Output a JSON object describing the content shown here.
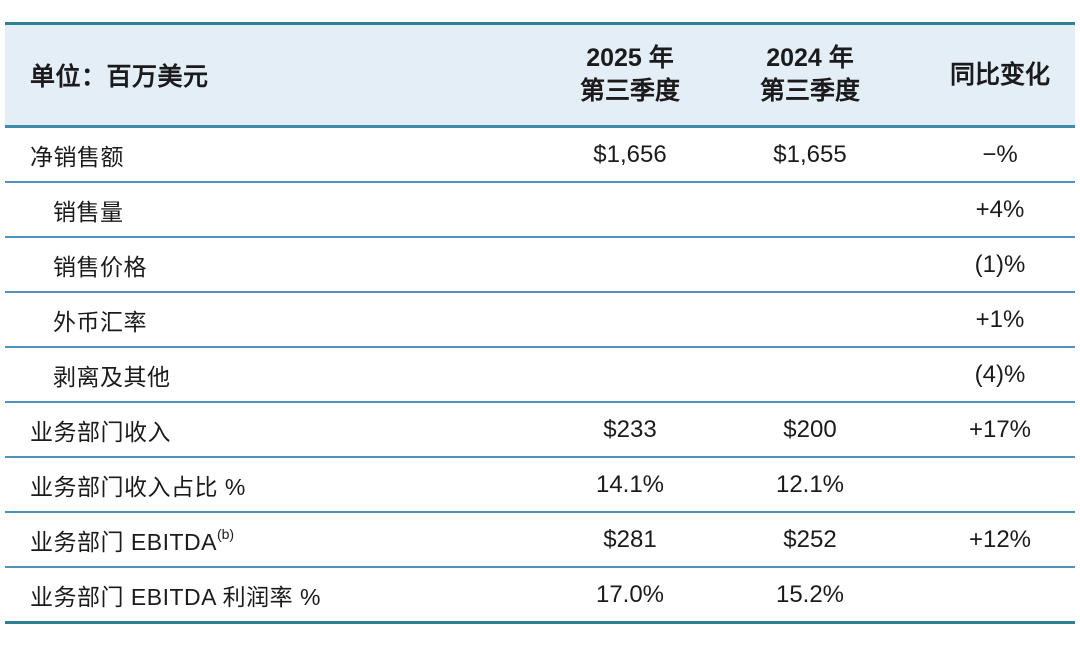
{
  "colors": {
    "page_bg": "#ffffff",
    "header_bg": "#e4eef6",
    "outer_border": "#2f8093",
    "header_line": "#3f8aa8",
    "row_line": "#4f94b8",
    "text": "#1b1b1d"
  },
  "table": {
    "header": {
      "unit": "单位：百万美元",
      "q3_2025_line1": "2025 年",
      "q3_2025_line2": "第三季度",
      "q3_2024_line1": "2024 年",
      "q3_2024_line2": "第三季度",
      "yoy_change": "同比变化"
    },
    "rows": [
      {
        "label": "净销售额",
        "q3_2025": "$1,656",
        "q3_2024": "$1,655",
        "yoy_change": "−%"
      },
      {
        "label": "销售量",
        "q3_2025": "",
        "q3_2024": "",
        "yoy_change": "+4%"
      },
      {
        "label": "销售价格",
        "q3_2025": "",
        "q3_2024": "",
        "yoy_change": "(1)%"
      },
      {
        "label": "外币汇率",
        "q3_2025": "",
        "q3_2024": "",
        "yoy_change": "+1%"
      },
      {
        "label": "剥离及其他",
        "q3_2025": "",
        "q3_2024": "",
        "yoy_change": "(4)%"
      },
      {
        "label": "业务部门收入",
        "q3_2025": "$233",
        "q3_2024": "$200",
        "yoy_change": "+17%"
      },
      {
        "label": "业务部门收入占比 %",
        "q3_2025": "14.1%",
        "q3_2024": "12.1%",
        "yoy_change": ""
      },
      {
        "label": "业务部门 EBITDA",
        "label_sup": "(b)",
        "q3_2025": "$281",
        "q3_2024": "$252",
        "yoy_change": "+12%"
      },
      {
        "label": "业务部门 EBITDA 利润率 %",
        "q3_2025": "17.0%",
        "q3_2024": "15.2%",
        "yoy_change": ""
      }
    ]
  }
}
